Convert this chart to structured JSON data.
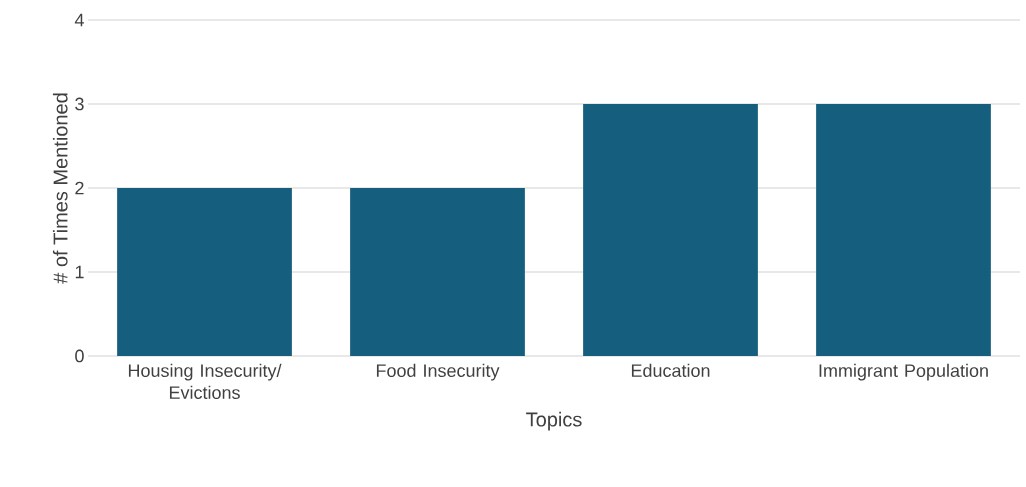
{
  "chart_data": {
    "type": "bar",
    "xlabel": "Topics",
    "ylabel": "# of Times Mentioned",
    "categories": [
      "Housing Insecurity/ Evictions",
      "Food Insecurity",
      "Education",
      "Immigrant Population"
    ],
    "values": [
      2,
      2,
      3,
      3
    ],
    "color": "#155e7d",
    "ylim": [
      0,
      4
    ],
    "yticks": [
      0,
      1,
      2,
      3,
      4
    ],
    "grid": "y"
  }
}
